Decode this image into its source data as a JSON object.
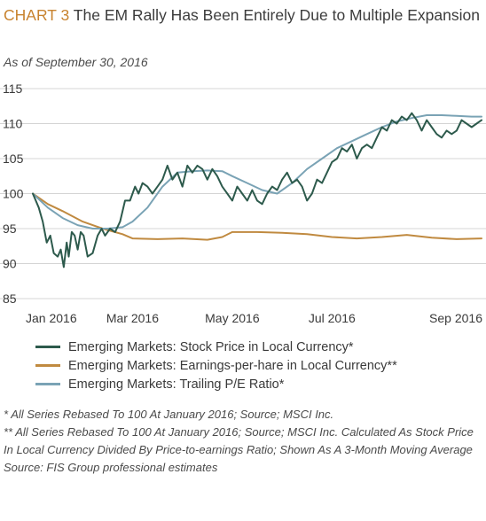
{
  "header": {
    "label": "CHART 3",
    "title": "The EM Rally Has Been Entirely Due to Multiple Expansion",
    "subtitle": "As of September 30, 2016"
  },
  "footnotes": [
    "* All Series Rebased To 100 At January 2016; Source; MSCI Inc.",
    "** All Series Rebased To 100 At January 2016; Source; MSCI Inc. Calculated As Stock Price In Local Currency Divided By Price-to-earnings Ratio; Shown As A 3-Month Moving Average",
    "Source: FIS Group professional estimates"
  ],
  "chart_data": {
    "type": "line",
    "title": "",
    "xlabel": "",
    "ylabel": "",
    "grid": "horizontal",
    "legend_position": "bottom",
    "xlim": [
      0,
      9
    ],
    "ylim": [
      85,
      115
    ],
    "yticks": [
      85,
      90,
      95,
      100,
      105,
      110,
      115
    ],
    "xticks": [
      {
        "x": 0,
        "label": "Jan 2016"
      },
      {
        "x": 2,
        "label": "Mar 2016"
      },
      {
        "x": 4,
        "label": "May 2016"
      },
      {
        "x": 6,
        "label": "Jul 2016"
      },
      {
        "x": 8,
        "label": "Sep 2016"
      }
    ],
    "series": [
      {
        "name": "Emerging Markets: Stock Price in Local Currency*",
        "color": "#2d5a4c",
        "x": [
          0,
          0.12,
          0.2,
          0.28,
          0.35,
          0.42,
          0.5,
          0.56,
          0.62,
          0.68,
          0.72,
          0.78,
          0.84,
          0.9,
          0.96,
          1.02,
          1.1,
          1.2,
          1.3,
          1.38,
          1.45,
          1.55,
          1.65,
          1.75,
          1.85,
          1.95,
          2.05,
          2.12,
          2.2,
          2.3,
          2.4,
          2.5,
          2.6,
          2.7,
          2.8,
          2.9,
          3.0,
          3.1,
          3.2,
          3.3,
          3.4,
          3.5,
          3.6,
          3.7,
          3.8,
          3.9,
          4.0,
          4.1,
          4.2,
          4.3,
          4.4,
          4.5,
          4.6,
          4.7,
          4.8,
          4.9,
          5.0,
          5.1,
          5.2,
          5.3,
          5.4,
          5.5,
          5.6,
          5.7,
          5.8,
          5.9,
          6.0,
          6.1,
          6.2,
          6.3,
          6.4,
          6.5,
          6.6,
          6.7,
          6.8,
          6.9,
          7.0,
          7.1,
          7.2,
          7.3,
          7.4,
          7.5,
          7.6,
          7.7,
          7.8,
          7.9,
          8.0,
          8.1,
          8.2,
          8.3,
          8.4,
          8.5,
          8.6,
          8.7,
          8.8,
          8.9,
          9.0
        ],
        "y": [
          100,
          98,
          96,
          93,
          94,
          91.5,
          91,
          92,
          89.5,
          93,
          91,
          94.5,
          94,
          92,
          94.5,
          94,
          91,
          91.5,
          94,
          95,
          94,
          95,
          94.5,
          96,
          99,
          99,
          101,
          100,
          101.5,
          101,
          100,
          101,
          102,
          104,
          102,
          103,
          101,
          104,
          103,
          104,
          103.5,
          102,
          103.5,
          102.5,
          101,
          100,
          99,
          101,
          100,
          99,
          100.5,
          99,
          98.5,
          100,
          101,
          100.5,
          102,
          103,
          101.5,
          102,
          101,
          99,
          100,
          102,
          101.5,
          103,
          104.5,
          105,
          106.5,
          106,
          107,
          105,
          106.5,
          107,
          106.5,
          108,
          109.5,
          109,
          110.5,
          110,
          111,
          110.5,
          111.5,
          110.5,
          109,
          110.5,
          109.5,
          108.5,
          108,
          109,
          108.5,
          109,
          110.5,
          110,
          109.5,
          110,
          110.5
        ]
      },
      {
        "name": "Emerging Markets: Earnings-per-hare in Local Currency**",
        "color": "#c08a40",
        "x": [
          0,
          0.3,
          0.6,
          1.0,
          1.4,
          1.8,
          2.0,
          2.5,
          3.0,
          3.5,
          3.8,
          4.0,
          4.5,
          5.0,
          5.5,
          6.0,
          6.5,
          7.0,
          7.5,
          8.0,
          8.5,
          9.0
        ],
        "y": [
          100,
          98.5,
          97.5,
          96,
          95,
          94.2,
          93.6,
          93.5,
          93.6,
          93.4,
          93.8,
          94.5,
          94.5,
          94.4,
          94.2,
          93.8,
          93.6,
          93.8,
          94.1,
          93.7,
          93.5,
          93.6
        ]
      },
      {
        "name": "Emerging Markets: Trailing P/E Ratio*",
        "color": "#7aa3b5",
        "x": [
          0,
          0.3,
          0.6,
          0.9,
          1.2,
          1.5,
          1.8,
          2.0,
          2.3,
          2.6,
          2.9,
          3.2,
          3.5,
          3.8,
          4.0,
          4.3,
          4.6,
          4.9,
          5.2,
          5.5,
          5.8,
          6.1,
          6.4,
          6.7,
          7.0,
          7.3,
          7.6,
          7.9,
          8.2,
          8.5,
          8.8,
          9.0
        ],
        "y": [
          100,
          98,
          96.5,
          95.5,
          95,
          95,
          95.2,
          96,
          98,
          101,
          103,
          103.2,
          103.3,
          103.2,
          102.5,
          101.5,
          100.5,
          100,
          101.5,
          103.5,
          105,
          106.5,
          107.5,
          108.5,
          109.5,
          110.3,
          110.8,
          111.2,
          111.2,
          111.1,
          111,
          111
        ]
      }
    ]
  }
}
